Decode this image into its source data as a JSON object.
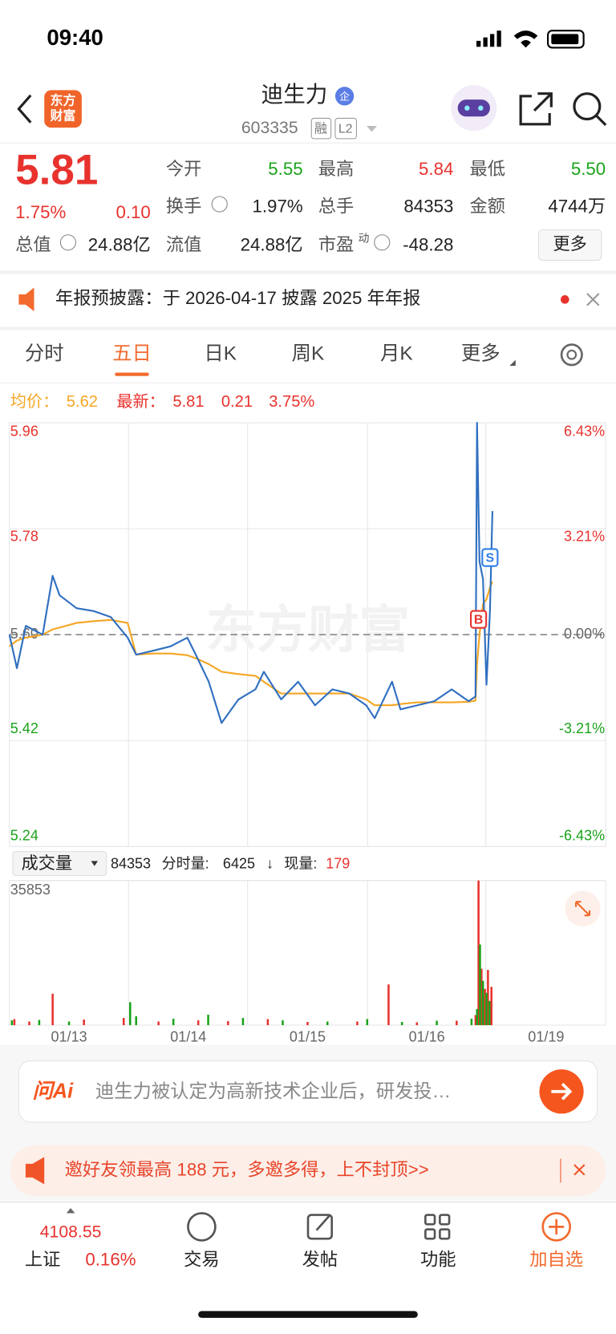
{
  "status_bar": {
    "time": "09:40"
  },
  "header": {
    "logo": [
      "东方",
      "财富"
    ],
    "title": "迪生力",
    "badge": "企",
    "code": "603335",
    "tags": [
      "融",
      "L2"
    ]
  },
  "quote": {
    "price": "5.81",
    "change_pct": "1.75%",
    "change": "0.10",
    "fields": [
      {
        "label": "今开",
        "value": "5.55"
      },
      {
        "label": "最高",
        "value": "5.84"
      },
      {
        "label": "最低",
        "value": "5.50"
      },
      {
        "label": "换手",
        "value": "1.97%"
      },
      {
        "label": "总手",
        "value": "84353"
      },
      {
        "label": "金额",
        "value": "4744万"
      },
      {
        "label": "总值",
        "value": "24.88亿"
      },
      {
        "label": "流值",
        "value": "24.88亿"
      },
      {
        "label": "市盈",
        "sup": "动",
        "value": "-48.28"
      }
    ],
    "more": "更多"
  },
  "notice": "年报预披露：于 2026-04-17 披露 2025 年年报",
  "tabs": [
    "分时",
    "五日",
    "日K",
    "周K",
    "月K",
    "更多"
  ],
  "info": {
    "avg_label": "均价：",
    "avg": "5.62",
    "latest_label": "最新：",
    "latest": "5.81",
    "change": "0.21",
    "change_pct": "3.75%"
  },
  "chart_data": [
    {
      "type": "line",
      "watermark": "东方财富",
      "x": [
        0,
        15,
        33,
        67,
        87,
        101,
        135,
        170,
        204,
        238,
        255,
        290,
        324,
        358,
        375,
        401,
        427,
        461,
        495,
        512,
        547,
        581,
        615,
        650,
        684,
        718,
        735,
        770,
        787,
        821,
        855,
        890,
        924,
        938,
        941,
        946,
        953,
        960,
        967,
        972
      ],
      "series": [
        {
          "color": "#2f6fc0",
          "values": [
            5.6,
            5.543,
            5.615,
            5.6,
            5.7,
            5.667,
            5.645,
            5.64,
            5.63,
            5.595,
            5.566,
            5.573,
            5.58,
            5.595,
            5.566,
            5.52,
            5.45,
            5.49,
            5.507,
            5.537,
            5.49,
            5.52,
            5.48,
            5.507,
            5.5,
            5.48,
            5.458,
            5.52,
            5.473,
            5.48,
            5.487,
            5.507,
            5.487,
            5.495,
            5.96,
            5.724,
            5.695,
            5.515,
            5.64,
            5.81
          ]
        },
        {
          "color": "#f5a623",
          "values": [
            5.58,
            5.59,
            5.595,
            5.6,
            5.609,
            5.612,
            5.62,
            5.623,
            5.625,
            5.62,
            5.566,
            5.568,
            5.568,
            5.565,
            5.56,
            5.55,
            5.537,
            5.533,
            5.53,
            5.52,
            5.5,
            5.5,
            5.5,
            5.5,
            5.5,
            5.49,
            5.48,
            5.48,
            5.482,
            5.485,
            5.485,
            5.485,
            5.486,
            5.488,
            5.55,
            5.6,
            5.652,
            5.66,
            5.68,
            5.69
          ]
        }
      ],
      "xlim": [
        0,
        1200
      ],
      "ylim": [
        5.24,
        5.96
      ],
      "yticks": [
        5.96,
        5.78,
        {
          "value": 5.6,
          "label": "5.60"
        },
        5.42,
        5.24
      ],
      "y2lim": [
        -6.43,
        6.43
      ],
      "y2ticks": [
        {
          "value": 6.43,
          "label": "6.43%"
        },
        {
          "value": 3.21,
          "label": "3.21%"
        },
        {
          "value": 0,
          "label": "0.00%"
        },
        {
          "value": -3.21,
          "label": "-3.21%"
        },
        {
          "value": -6.43,
          "label": "-6.43%"
        }
      ],
      "grid": true,
      "markers": [
        {
          "label": "B",
          "x": 944,
          "y": 5.626,
          "color": "#e8322d"
        },
        {
          "label": "S",
          "x": 967,
          "y": 5.731,
          "color": "#2f7ee8"
        }
      ]
    },
    {
      "type": "bar",
      "xlim": [
        0,
        1200
      ],
      "ylim": [
        0,
        35853
      ],
      "yticks": [
        35853
      ],
      "xticks": [
        {
          "value": 120,
          "label": "01/13"
        },
        {
          "value": 360,
          "label": "01/14"
        },
        {
          "value": 600,
          "label": "01/15"
        },
        {
          "value": 840,
          "label": "01/16"
        },
        {
          "value": 1080,
          "label": "01/19"
        }
      ],
      "series": [
        {
          "color": "#e8322d",
          "x": [
            10,
            40,
            87,
            150,
            230,
            300,
            380,
            440,
            520,
            600,
            700,
            763,
            820,
            900,
            938,
            944,
            950,
            957,
            963,
            970
          ],
          "values": [
            1500,
            900,
            7800,
            1400,
            1800,
            900,
            1200,
            1000,
            1500,
            800,
            900,
            10100,
            700,
            1100,
            2500,
            35853,
            14000,
            9000,
            13700,
            9500
          ]
        },
        {
          "color": "#1aa31a",
          "x": [
            5,
            60,
            120,
            243,
            255,
            330,
            400,
            470,
            550,
            640,
            720,
            790,
            860,
            930,
            941,
            947,
            953,
            960,
            966
          ],
          "values": [
            1200,
            1300,
            900,
            5700,
            2200,
            1600,
            2600,
            1800,
            1200,
            900,
            1500,
            800,
            1100,
            1600,
            4000,
            20000,
            11000,
            8000,
            6000
          ]
        }
      ]
    }
  ],
  "volume_header": {
    "selector": "成交量",
    "total": "84353",
    "minute_label": "分时量:",
    "minute": "6425",
    "arrow": "↓",
    "current_label": "现量:",
    "current": "179"
  },
  "ai_bar": {
    "logo": "问Ai",
    "text": "迪生力被认定为高新技术企业后，研发投…"
  },
  "promo": "邀好友领最高 188 元，多邀多得，上不封顶>>",
  "nav": {
    "index_value": "4108.55",
    "index_name": "上证",
    "index_change": "0.16%",
    "items": [
      "交易",
      "发帖",
      "功能",
      "加自选"
    ]
  }
}
